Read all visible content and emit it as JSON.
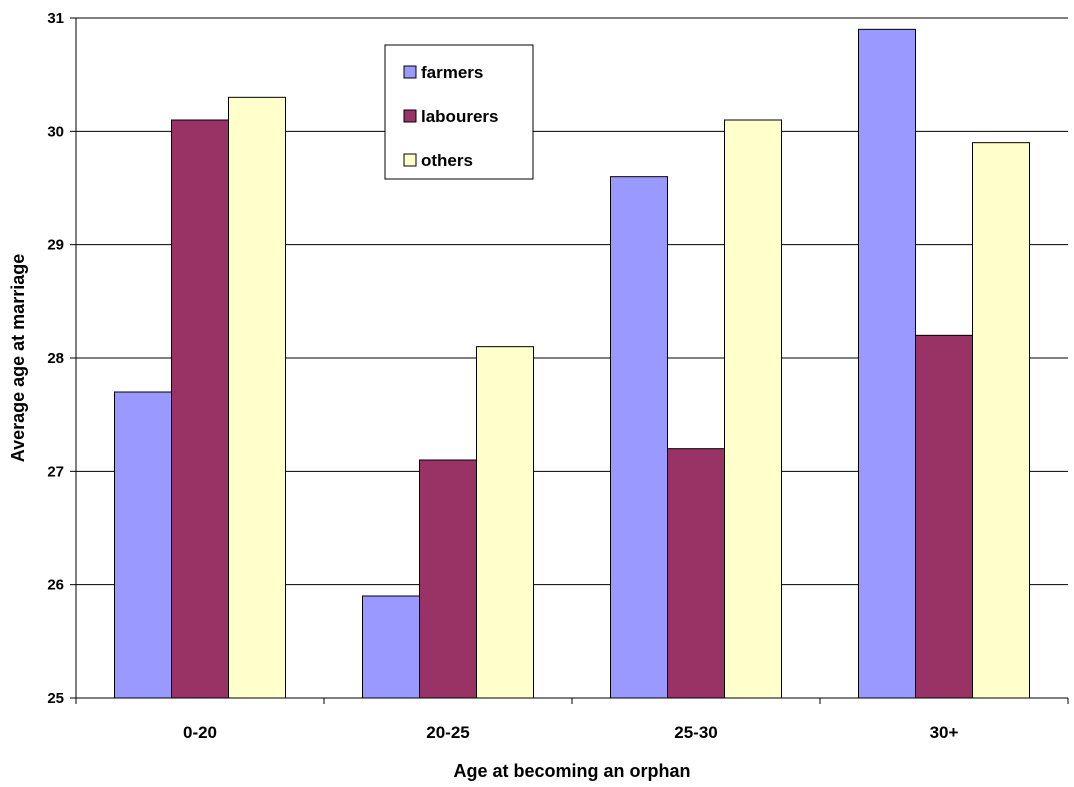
{
  "chart_data": {
    "type": "bar",
    "title": "",
    "xlabel": "Age at becoming an orphan",
    "ylabel": "Average age at marriage",
    "categories": [
      "0-20",
      "20-25",
      "25-30",
      "30+"
    ],
    "ylim": [
      25,
      31
    ],
    "yticks": [
      25,
      26,
      27,
      28,
      29,
      30,
      31
    ],
    "grid": true,
    "legend_position": "top-center",
    "series": [
      {
        "name": "farmers",
        "color": "#9999ff",
        "values": [
          27.7,
          25.9,
          29.6,
          30.9
        ]
      },
      {
        "name": "labourers",
        "color": "#993366",
        "values": [
          30.1,
          27.1,
          27.2,
          28.2
        ]
      },
      {
        "name": "others",
        "color": "#ffffcc",
        "values": [
          30.3,
          28.1,
          30.1,
          29.9
        ]
      }
    ]
  }
}
